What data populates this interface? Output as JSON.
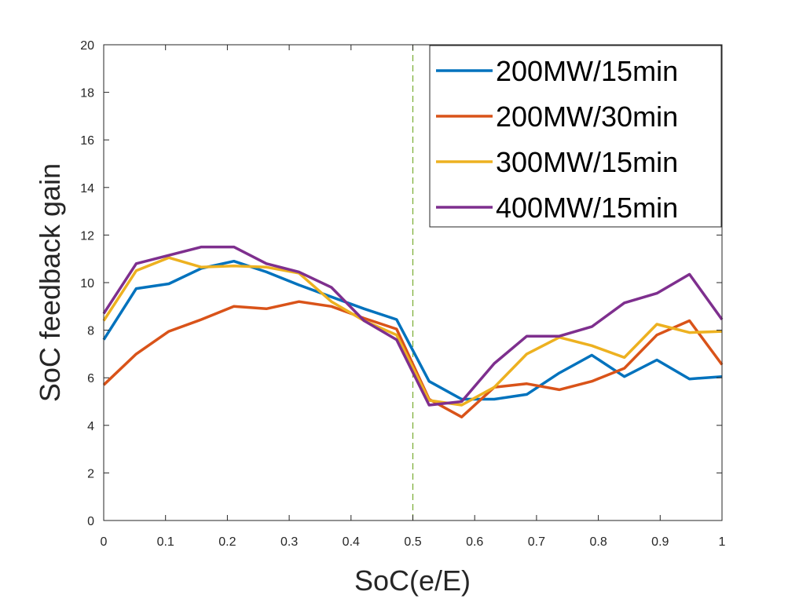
{
  "chart_data": {
    "type": "line",
    "title": "",
    "xlabel": "SoC(e/E)",
    "ylabel": "SoC feedback gain",
    "xlim": [
      0,
      1
    ],
    "ylim": [
      0,
      20
    ],
    "xticks": [
      0,
      0.1,
      0.2,
      0.3,
      0.4,
      0.5,
      0.6,
      0.7,
      0.8,
      0.9,
      1
    ],
    "xtick_labels": [
      "0",
      "0.1",
      "0.2",
      "0.3",
      "0.4",
      "0.5",
      "0.6",
      "0.7",
      "0.8",
      "0.9",
      "1"
    ],
    "yticks": [
      0,
      2,
      4,
      6,
      8,
      10,
      12,
      14,
      16,
      18,
      20
    ],
    "ytick_labels": [
      "0",
      "2",
      "4",
      "6",
      "8",
      "10",
      "12",
      "14",
      "16",
      "18",
      "20"
    ],
    "grid": false,
    "legend_position": "top-right",
    "vline": {
      "x": 0.5,
      "color": "#77AC30",
      "style": "dashed"
    },
    "x": [
      0,
      0.0526,
      0.1053,
      0.1579,
      0.2105,
      0.2632,
      0.3158,
      0.3684,
      0.4211,
      0.4737,
      0.5263,
      0.5789,
      0.6316,
      0.6842,
      0.7368,
      0.7895,
      0.8421,
      0.8947,
      0.9474,
      1.0
    ],
    "series": [
      {
        "name": "200MW/15min",
        "color": "#0072BD",
        "values": [
          7.6,
          9.75,
          9.95,
          10.6,
          10.9,
          10.45,
          9.9,
          9.4,
          8.9,
          8.45,
          5.85,
          5.1,
          5.1,
          5.3,
          6.2,
          6.95,
          6.05,
          6.75,
          5.95,
          6.05
        ]
      },
      {
        "name": "200MW/30min",
        "color": "#D95319",
        "values": [
          5.7,
          7.0,
          7.95,
          8.45,
          9.0,
          8.9,
          9.2,
          9.0,
          8.5,
          8.05,
          5.1,
          4.35,
          5.6,
          5.75,
          5.5,
          5.85,
          6.4,
          7.8,
          8.4,
          6.55
        ]
      },
      {
        "name": "300MW/15min",
        "color": "#EDB120",
        "values": [
          8.4,
          10.5,
          11.05,
          10.65,
          10.7,
          10.65,
          10.4,
          9.2,
          8.4,
          7.8,
          5.05,
          4.85,
          5.6,
          7.0,
          7.7,
          7.35,
          6.85,
          8.25,
          7.9,
          7.95
        ]
      },
      {
        "name": "400MW/15min",
        "color": "#7E2F8E",
        "values": [
          8.7,
          10.8,
          11.15,
          11.5,
          11.5,
          10.8,
          10.45,
          9.8,
          8.4,
          7.6,
          4.85,
          5.0,
          6.6,
          7.75,
          7.75,
          8.15,
          9.15,
          9.55,
          10.35,
          8.45
        ]
      }
    ]
  }
}
